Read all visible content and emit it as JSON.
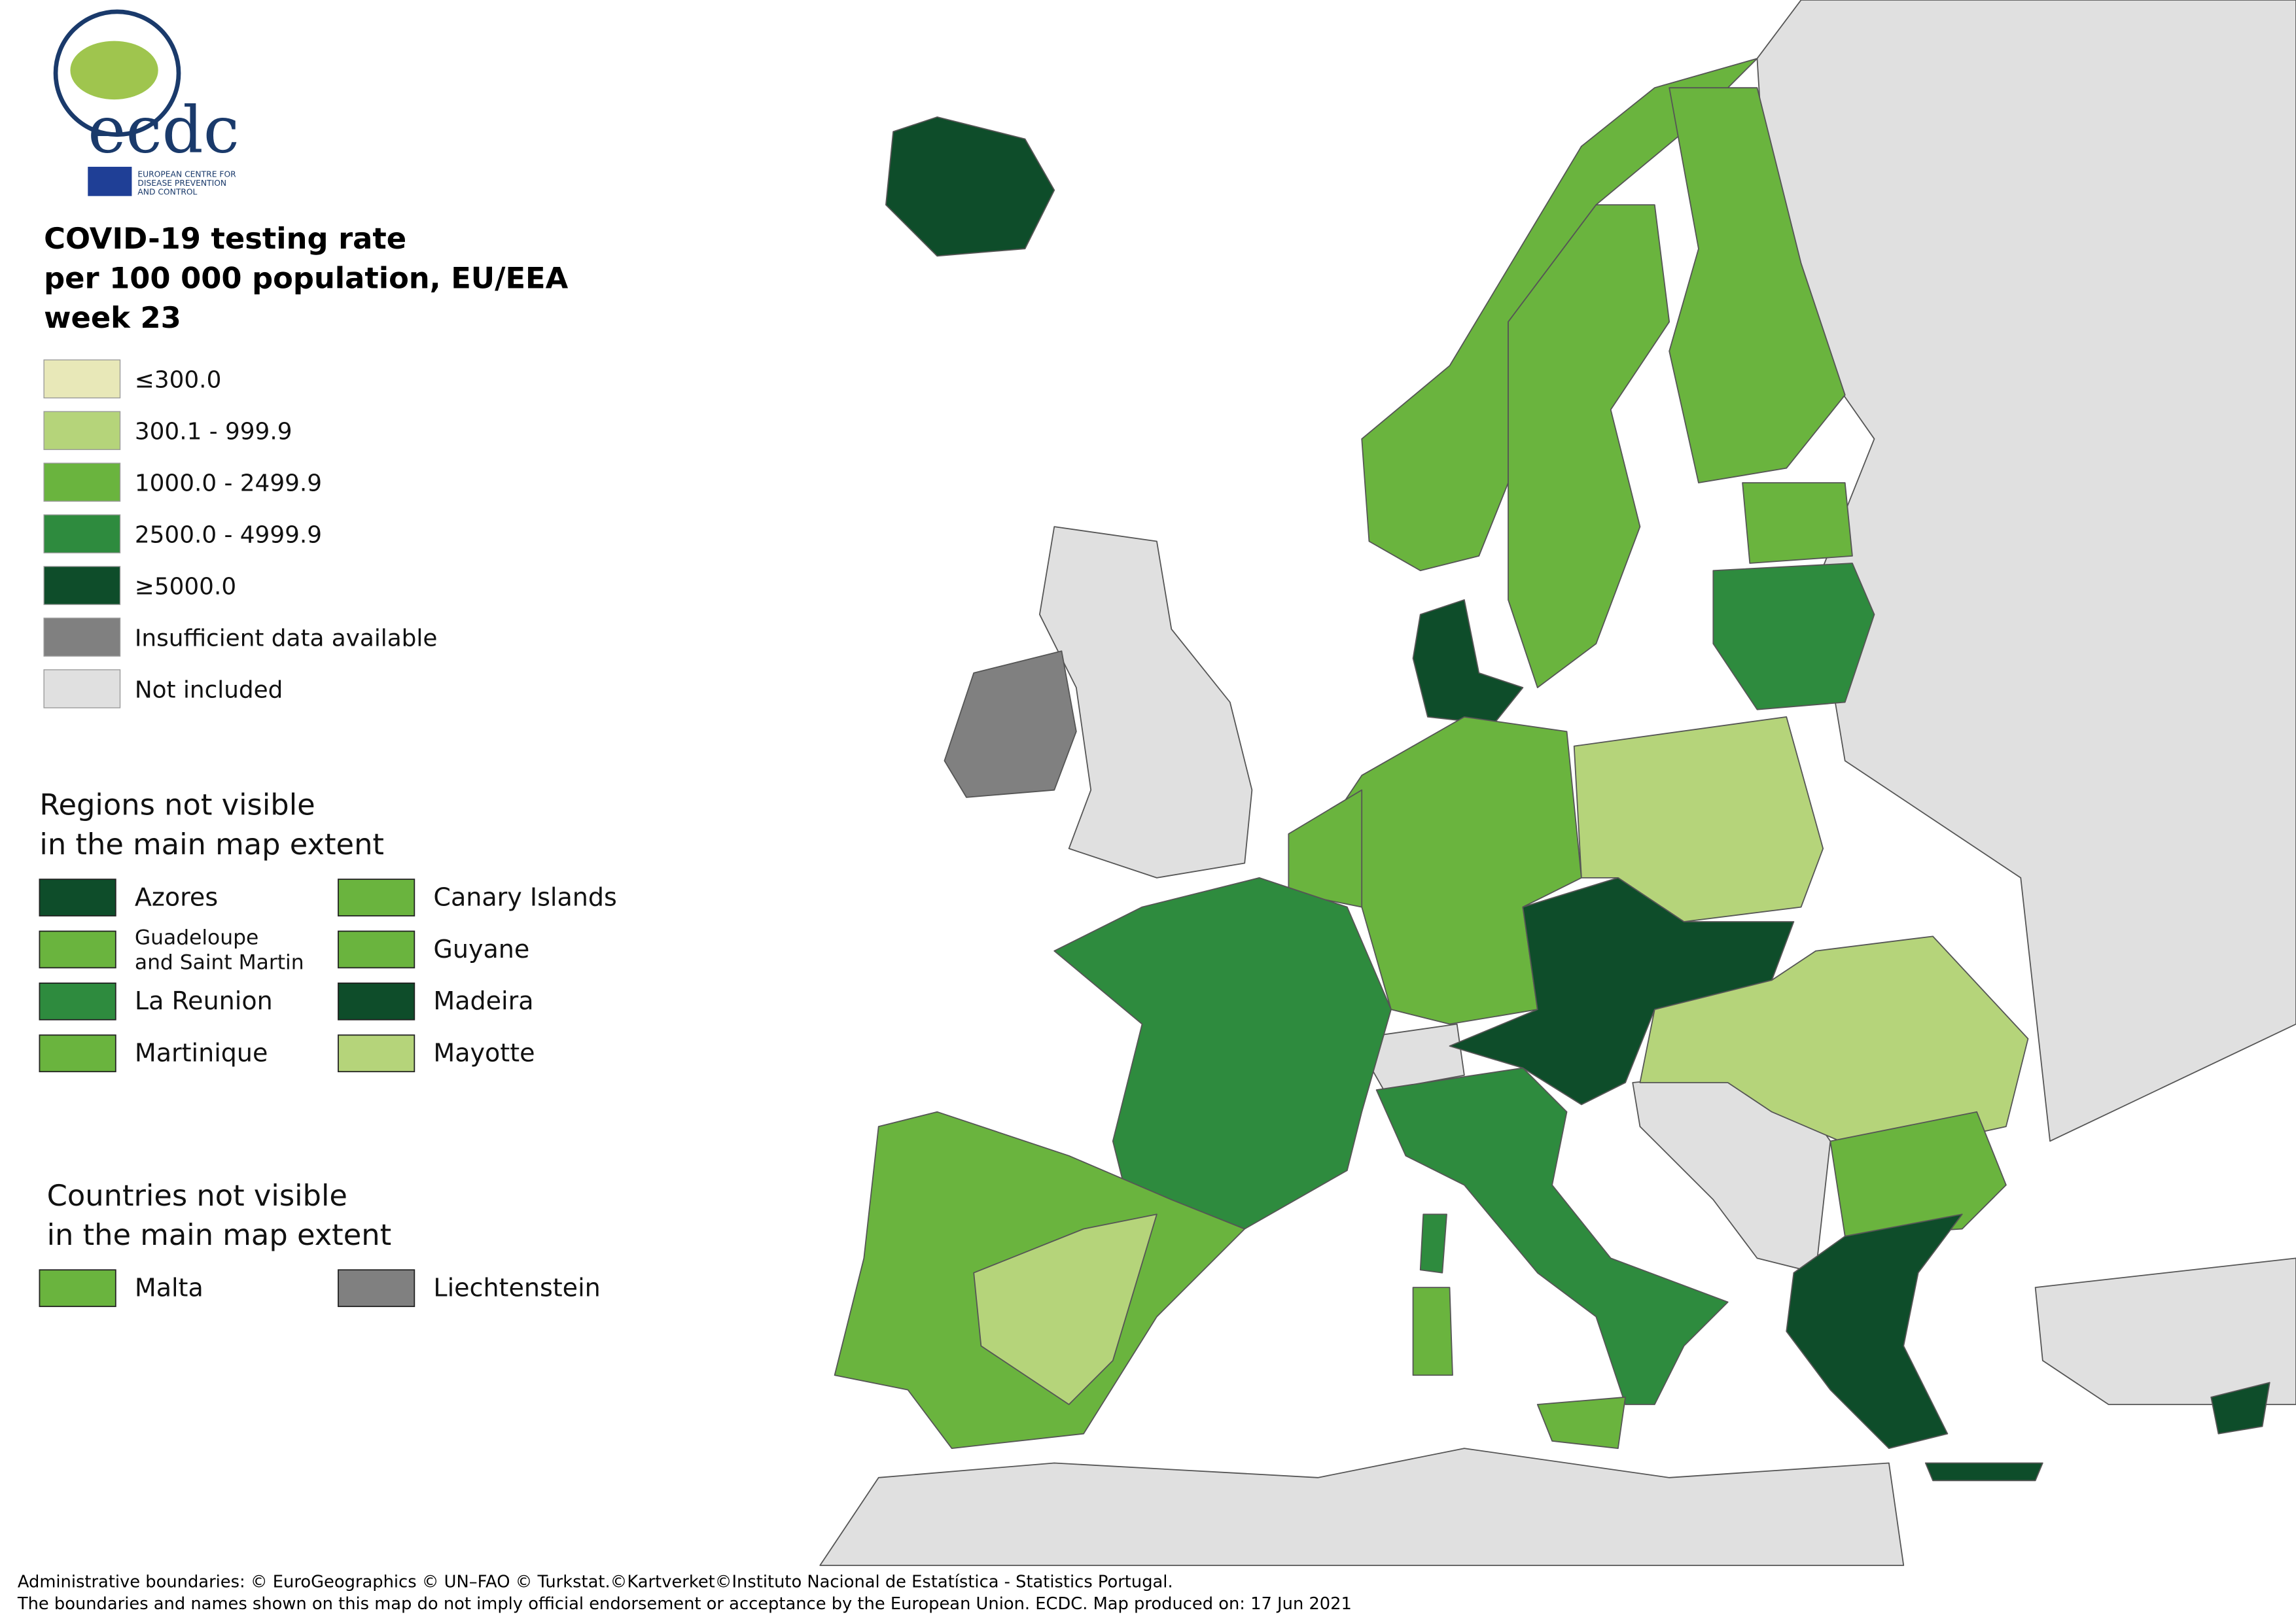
{
  "logo": {
    "name": "ecdc",
    "subtitle": [
      "EUROPEAN CENTRE FOR",
      "DISEASE PREVENTION",
      "AND CONTROL"
    ]
  },
  "title": [
    "COVID-19 testing rate",
    "per 100 000 population, EU/EEA",
    "week 23"
  ],
  "legend": [
    {
      "label": "≤300.0",
      "color": "#e8e8b8"
    },
    {
      "label": "300.1 - 999.9",
      "color": "#b5d47a"
    },
    {
      "label": "1000.0 - 2499.9",
      "color": "#6ab43e"
    },
    {
      "label": "2500.0 - 4999.9",
      "color": "#2e8b3e"
    },
    {
      "label": "≥5000.0",
      "color": "#0e4d2a"
    },
    {
      "label": "Insufficient data available",
      "color": "#808080"
    },
    {
      "label": "Not included",
      "color": "#e0e0e0"
    }
  ],
  "regions": {
    "title": [
      "Regions not visible",
      "in the main map extent"
    ],
    "items": [
      {
        "name": "Azores",
        "color": "#0e4d2a"
      },
      {
        "name": "Canary Islands",
        "color": "#6ab43e"
      },
      {
        "name": [
          "Guadeloupe",
          "and Saint Martin"
        ],
        "color": "#6ab43e"
      },
      {
        "name": "Guyane",
        "color": "#6ab43e"
      },
      {
        "name": "La Reunion",
        "color": "#2e8b3e"
      },
      {
        "name": "Madeira",
        "color": "#0e4d2a"
      },
      {
        "name": "Martinique",
        "color": "#6ab43e"
      },
      {
        "name": "Mayotte",
        "color": "#b5d47a"
      }
    ]
  },
  "countries": {
    "title": [
      "Countries not visible",
      "in the main map extent"
    ],
    "items": [
      {
        "name": "Malta",
        "color": "#6ab43e"
      },
      {
        "name": "Liechtenstein",
        "color": "#808080"
      }
    ]
  },
  "footer": [
    "Administrative boundaries: © EuroGeographics © UN–FAO © Turkstat.©Kartverket©Instituto Nacional de Estatística - Statistics Portugal.",
    "The boundaries and names shown on this map do not imply official endorsement or acceptance by the European Union. ECDC. Map produced on: 17 Jun 2021"
  ]
}
